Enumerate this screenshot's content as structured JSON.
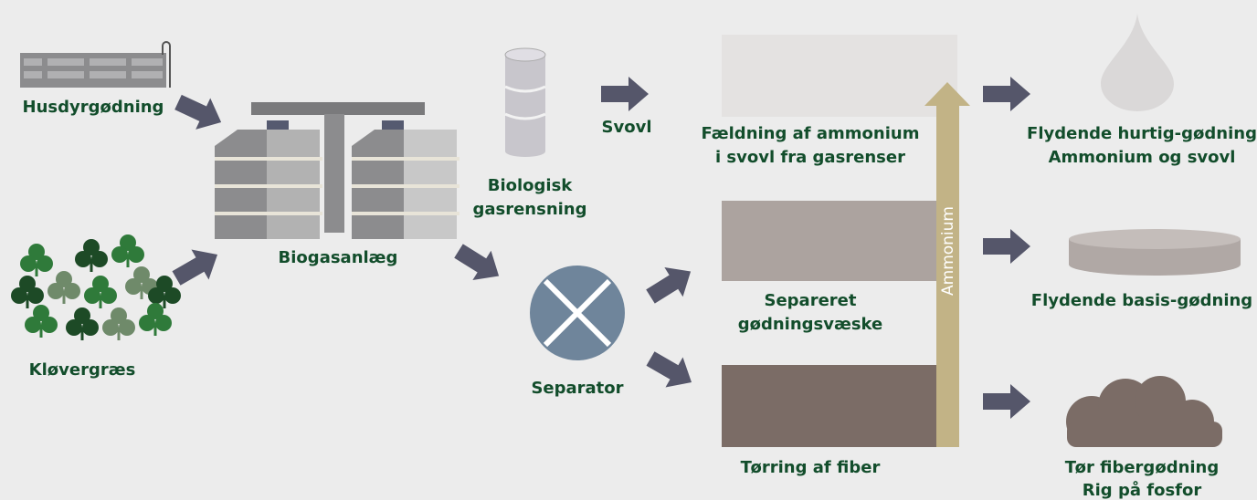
{
  "inputs": [
    {
      "label": "Husdyrgødning"
    },
    {
      "label": "Kløvergræs"
    }
  ],
  "plant": {
    "label": "Biogasanlæg"
  },
  "gas_cleaning": {
    "lines": [
      "Biologisk",
      "gasrensning"
    ]
  },
  "sulfur": {
    "label": "Svovl"
  },
  "separator": {
    "label": "Separator"
  },
  "processes": [
    {
      "lines": [
        "Fældning af ammonium",
        "i svovl fra gasrenser"
      ]
    },
    {
      "lines": [
        "Separeret",
        "gødningsvæske"
      ]
    },
    {
      "lines": [
        "Tørring af fiber"
      ]
    }
  ],
  "ammonium_arrow": {
    "label": "Ammonium"
  },
  "products": [
    {
      "lines": [
        "Flydende hurtig-gødning",
        "Ammonium og svovl"
      ]
    },
    {
      "lines": [
        "Flydende basis-gødning"
      ]
    },
    {
      "lines": [
        "Tør fibergødning",
        "Rig på fosfor"
      ]
    }
  ]
}
